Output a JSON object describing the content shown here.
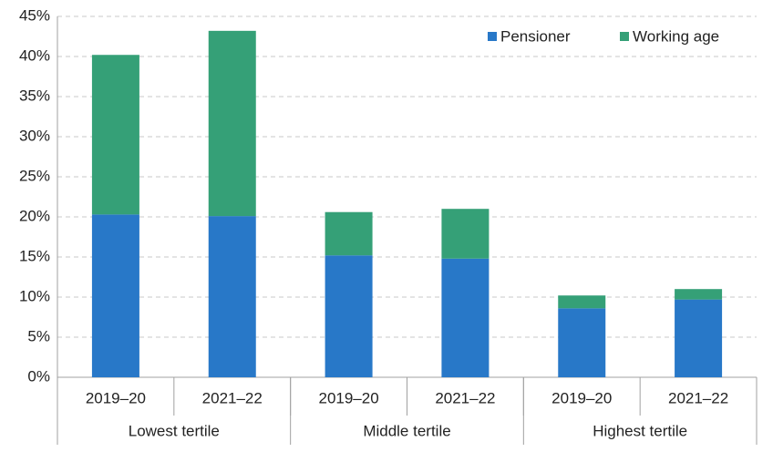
{
  "chart_data": {
    "type": "stacked-bar",
    "categories": [
      "2019–20",
      "2021–22",
      "2019–20",
      "2021–22",
      "2019–20",
      "2021–22"
    ],
    "groups": [
      "Lowest tertile",
      "Middle tertile",
      "Highest tertile"
    ],
    "series": [
      {
        "name": "Pensioner",
        "color": "#2878c8",
        "values": [
          20.3,
          20.1,
          15.2,
          14.8,
          8.6,
          9.7
        ]
      },
      {
        "name": "Working age",
        "color": "#35a077",
        "values": [
          19.9,
          23.1,
          5.4,
          6.2,
          1.6,
          1.3
        ]
      }
    ],
    "ylim": [
      0,
      45
    ],
    "yticks": [
      {
        "value": 0,
        "label": "0%"
      },
      {
        "value": 5,
        "label": "5%"
      },
      {
        "value": 10,
        "label": "10%"
      },
      {
        "value": 15,
        "label": "15%"
      },
      {
        "value": 20,
        "label": "20%"
      },
      {
        "value": 25,
        "label": "25%"
      },
      {
        "value": 30,
        "label": "30%"
      },
      {
        "value": 35,
        "label": "35%"
      },
      {
        "value": 40,
        "label": "40%"
      },
      {
        "value": 45,
        "label": "45%"
      }
    ],
    "grid": true,
    "legend": "top-right"
  }
}
